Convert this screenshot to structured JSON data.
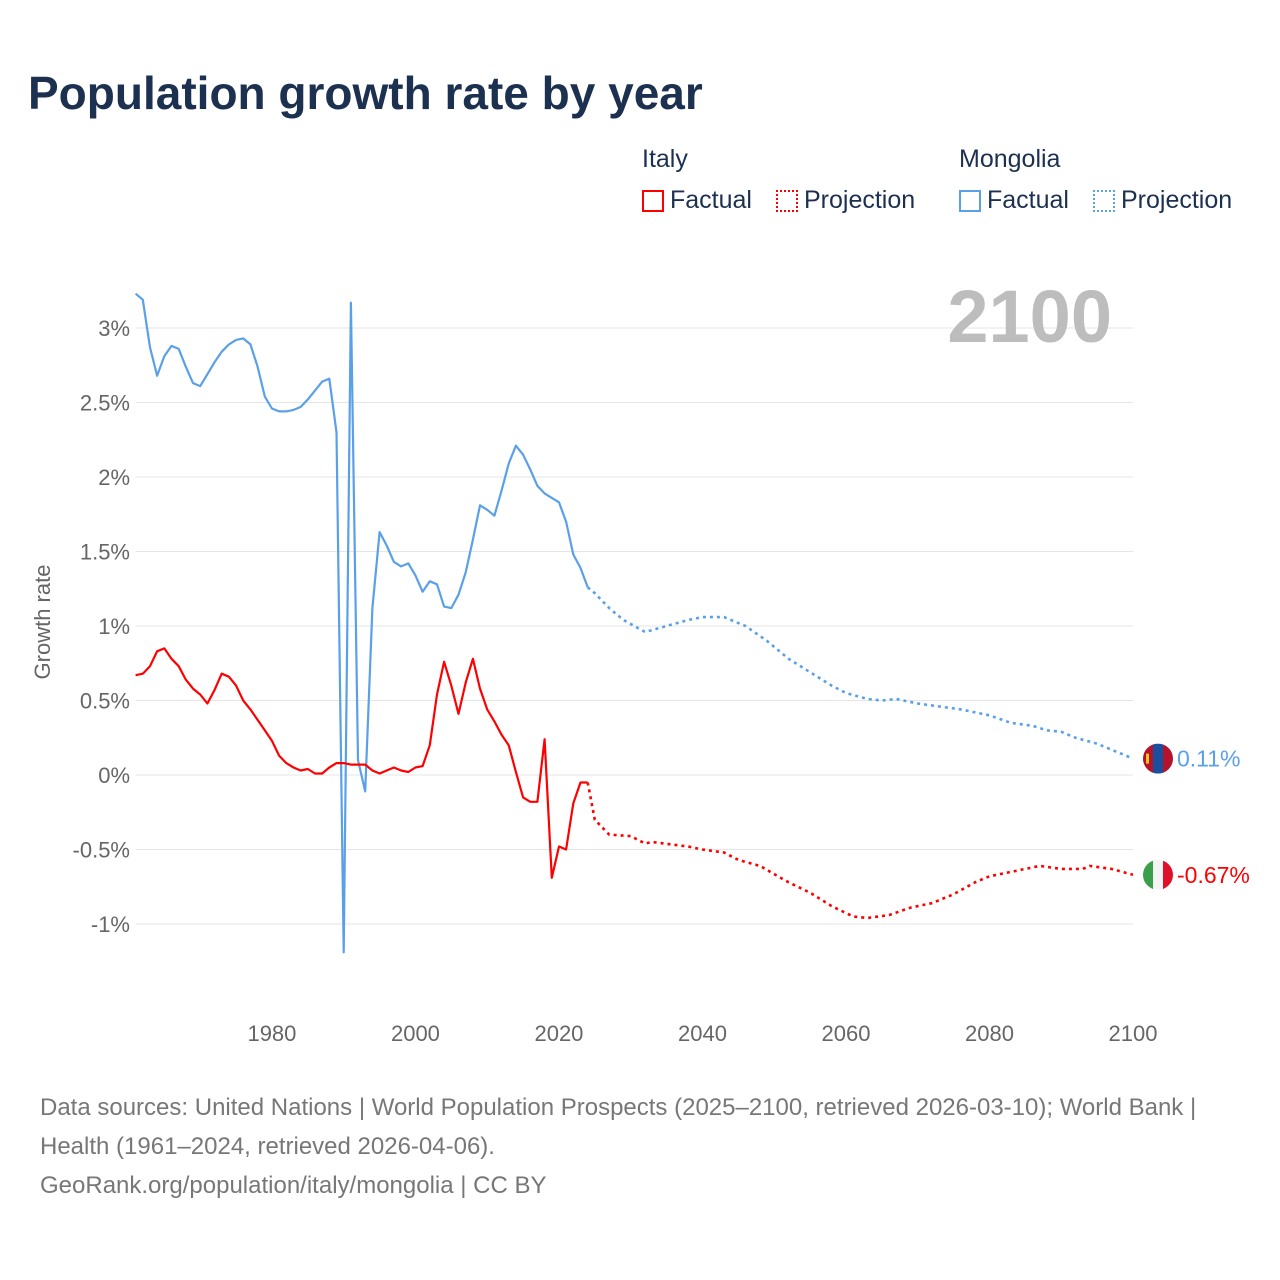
{
  "title": "Population growth rate by year",
  "legend": {
    "groups": [
      {
        "name": "Italy",
        "factual": "Factual",
        "projection": "Projection",
        "color": "#ff0000"
      },
      {
        "name": "Mongolia",
        "factual": "Factual",
        "projection": "Projection",
        "color": "#5aa0e8"
      }
    ]
  },
  "footer": {
    "sources": "Data sources: United Nations | World Population Prospects (2025–2100, retrieved 2026-03-10); World Bank | Health (1961–2024, retrieved 2026-04-06).",
    "credit": "GeoRank.org/population/italy/mongolia | CC BY"
  },
  "chart_data": {
    "type": "line",
    "title": "Population growth rate by year",
    "ylabel": "Growth rate",
    "xlabel": "",
    "xlim": [
      1961,
      2100
    ],
    "ylim": [
      -1.3,
      3.3
    ],
    "x_ticks": [
      1980,
      2000,
      2020,
      2040,
      2060,
      2080,
      2100
    ],
    "y_ticks": [
      -1,
      -0.5,
      0,
      0.5,
      1,
      1.5,
      2,
      2.5,
      3
    ],
    "y_tick_labels": [
      "-1%",
      "-0.5%",
      "0%",
      "0.5%",
      "1%",
      "1.5%",
      "2%",
      "2.5%",
      "3%"
    ],
    "year_label": "2100",
    "grid": true,
    "series": [
      {
        "name": "Mongolia",
        "color": "#5aa0e8",
        "end_label": "0.11%",
        "factual": {
          "x": [
            1961,
            1962,
            1963,
            1964,
            1965,
            1966,
            1967,
            1968,
            1969,
            1970,
            1971,
            1972,
            1973,
            1974,
            1975,
            1976,
            1977,
            1978,
            1979,
            1980,
            1981,
            1982,
            1983,
            1984,
            1985,
            1986,
            1987,
            1988,
            1989,
            1990,
            1991,
            1992,
            1993,
            1994,
            1995,
            1996,
            1997,
            1998,
            1999,
            2000,
            2001,
            2002,
            2003,
            2004,
            2005,
            2006,
            2007,
            2008,
            2009,
            2010,
            2011,
            2012,
            2013,
            2014,
            2015,
            2016,
            2017,
            2018,
            2019,
            2020,
            2021,
            2022,
            2023,
            2024
          ],
          "y": [
            3.23,
            3.19,
            2.87,
            2.68,
            2.81,
            2.88,
            2.86,
            2.74,
            2.63,
            2.61,
            2.69,
            2.77,
            2.84,
            2.89,
            2.92,
            2.93,
            2.89,
            2.74,
            2.54,
            2.46,
            2.44,
            2.44,
            2.45,
            2.47,
            2.52,
            2.58,
            2.64,
            2.66,
            2.3,
            -1.19,
            3.17,
            0.1,
            -0.11,
            1.12,
            1.63,
            1.54,
            1.43,
            1.4,
            1.42,
            1.34,
            1.23,
            1.3,
            1.28,
            1.13,
            1.12,
            1.21,
            1.36,
            1.58,
            1.81,
            1.78,
            1.74,
            1.91,
            2.09,
            2.21,
            2.15,
            2.05,
            1.94,
            1.89,
            1.86,
            1.83,
            1.7,
            1.48,
            1.39,
            1.26
          ]
        },
        "projection": {
          "x": [
            2024,
            2025,
            2027,
            2029,
            2032,
            2035,
            2038,
            2040,
            2043,
            2046,
            2049,
            2052,
            2055,
            2058,
            2060,
            2063,
            2065,
            2067,
            2070,
            2073,
            2076,
            2080,
            2083,
            2086,
            2088,
            2090,
            2092,
            2095,
            2097,
            2100
          ],
          "y": [
            1.26,
            1.22,
            1.12,
            1.04,
            0.96,
            1.0,
            1.04,
            1.06,
            1.06,
            1.0,
            0.9,
            0.78,
            0.69,
            0.6,
            0.55,
            0.51,
            0.5,
            0.51,
            0.48,
            0.46,
            0.44,
            0.4,
            0.35,
            0.33,
            0.3,
            0.29,
            0.25,
            0.21,
            0.17,
            0.11
          ]
        }
      },
      {
        "name": "Italy",
        "color": "#ff0000",
        "end_label": "-0.67%",
        "factual": {
          "x": [
            1961,
            1962,
            1963,
            1964,
            1965,
            1966,
            1967,
            1968,
            1969,
            1970,
            1971,
            1972,
            1973,
            1974,
            1975,
            1976,
            1977,
            1978,
            1979,
            1980,
            1981,
            1982,
            1983,
            1984,
            1985,
            1986,
            1987,
            1988,
            1989,
            1990,
            1991,
            1992,
            1993,
            1994,
            1995,
            1996,
            1997,
            1998,
            1999,
            2000,
            2001,
            2002,
            2003,
            2004,
            2005,
            2006,
            2007,
            2008,
            2009,
            2010,
            2011,
            2012,
            2013,
            2014,
            2015,
            2016,
            2017,
            2018,
            2019,
            2020,
            2021,
            2022,
            2023,
            2024
          ],
          "y": [
            0.67,
            0.68,
            0.73,
            0.83,
            0.85,
            0.78,
            0.73,
            0.64,
            0.58,
            0.54,
            0.48,
            0.57,
            0.68,
            0.66,
            0.6,
            0.5,
            0.44,
            0.37,
            0.3,
            0.23,
            0.13,
            0.08,
            0.05,
            0.03,
            0.04,
            0.01,
            0.01,
            0.05,
            0.08,
            0.08,
            0.07,
            0.07,
            0.07,
            0.03,
            0.01,
            0.03,
            0.05,
            0.03,
            0.02,
            0.05,
            0.06,
            0.2,
            0.54,
            0.76,
            0.6,
            0.41,
            0.62,
            0.78,
            0.58,
            0.44,
            0.36,
            0.27,
            0.2,
            0.02,
            -0.15,
            -0.18,
            -0.18,
            0.24,
            -0.69,
            -0.48,
            -0.5,
            -0.19,
            -0.05,
            -0.05
          ]
        },
        "projection": {
          "x": [
            2024,
            2025,
            2027,
            2030,
            2032,
            2033,
            2038,
            2040,
            2043,
            2045,
            2048,
            2052,
            2055,
            2058,
            2061,
            2063,
            2066,
            2069,
            2072,
            2075,
            2078,
            2080,
            2083,
            2086,
            2087,
            2090,
            2093,
            2094,
            2097,
            2100
          ],
          "y": [
            -0.05,
            -0.3,
            -0.4,
            -0.41,
            -0.46,
            -0.45,
            -0.48,
            -0.5,
            -0.52,
            -0.57,
            -0.61,
            -0.72,
            -0.79,
            -0.88,
            -0.95,
            -0.96,
            -0.94,
            -0.89,
            -0.86,
            -0.8,
            -0.72,
            -0.68,
            -0.65,
            -0.62,
            -0.61,
            -0.63,
            -0.63,
            -0.61,
            -0.63,
            -0.67
          ]
        }
      }
    ]
  }
}
